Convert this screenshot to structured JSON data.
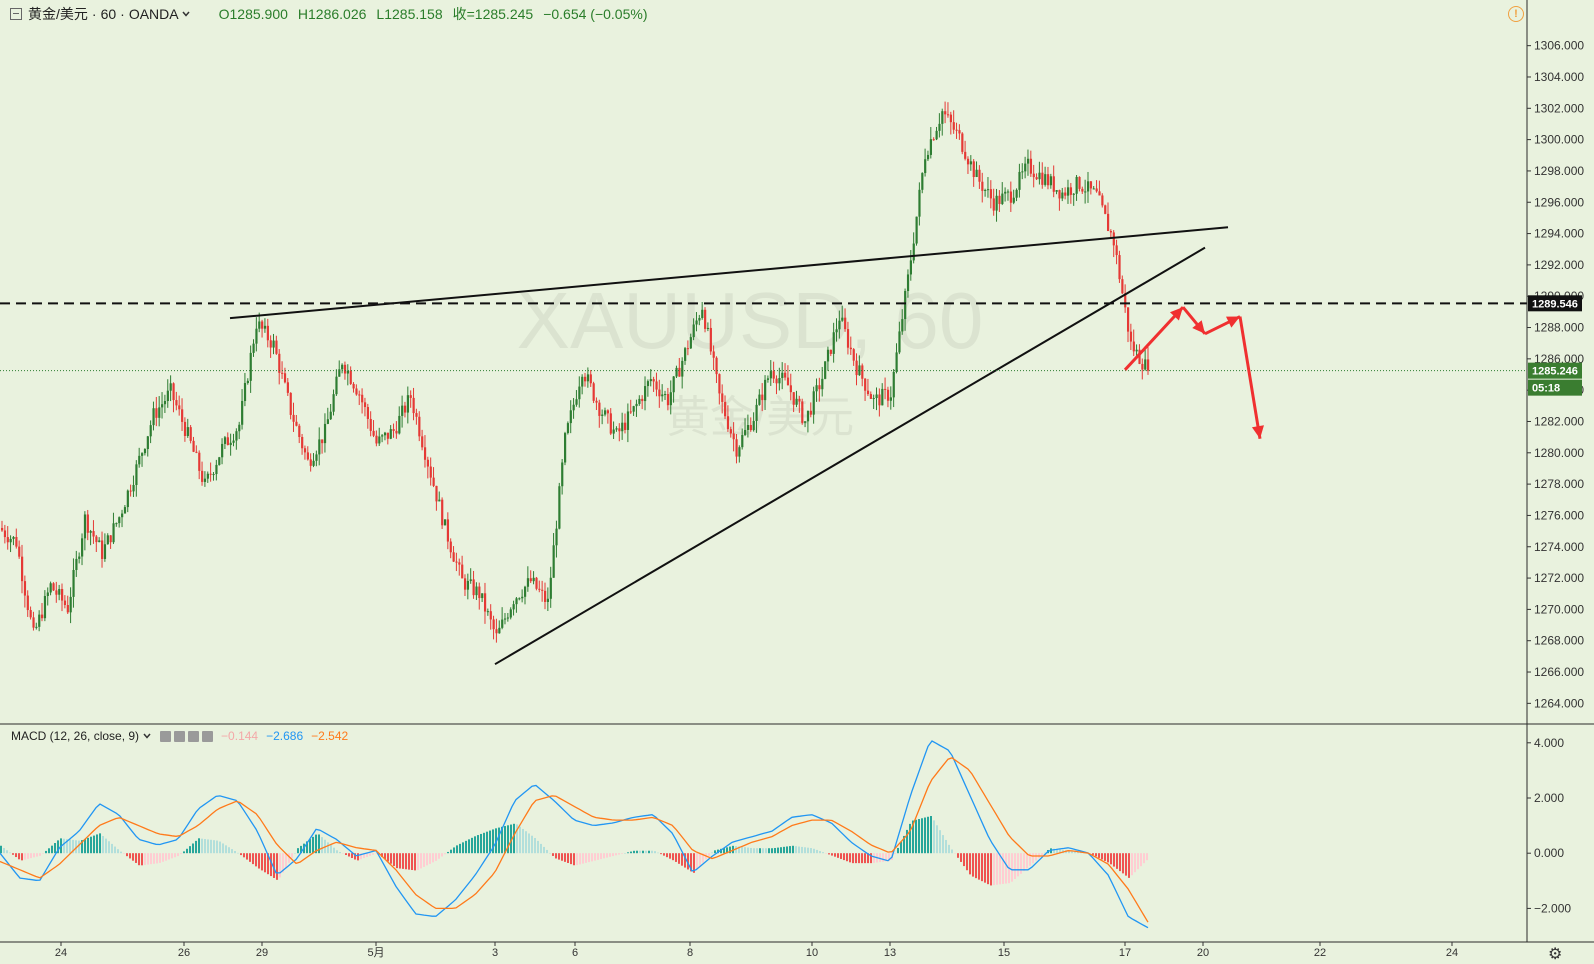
{
  "header": {
    "symbol": "黄金/美元",
    "interval": "60",
    "source": "OANDA",
    "open": "O1285.900",
    "high": "H1286.026",
    "low": "L1285.158",
    "close": "收=1285.245",
    "change": "−0.654 (−0.05%)",
    "dropdown_icon": "chevron-down-icon",
    "alert_icon": "alert-icon",
    "alert_glyph": "!"
  },
  "watermark": {
    "symbol": "XAUUSD, 60",
    "name": "黄金/美元"
  },
  "macd_header": {
    "label": "MACD (12, 26, close, 9)",
    "hist_value": "−0.144",
    "macd_value": "−2.686",
    "signal_value": "−2.542",
    "icons": [
      "eye-icon",
      "settings-icon",
      "lock-icon",
      "close-icon"
    ]
  },
  "colors": {
    "background": "#e9f2de",
    "up_candle": "#2e7d32",
    "down_candle": "#e53935",
    "trend_line": "#111111",
    "arrows": "#f03030",
    "price_label_bg": "#3a7d30",
    "level_label_bg": "#111111",
    "macd_line": "#2196f3",
    "signal_line": "#ff7a1a",
    "hist_pos_strong": "#26a69a",
    "hist_pos_weak": "#b2dfdb",
    "hist_neg_strong": "#ef5350",
    "hist_neg_weak": "#ffcdd2"
  },
  "price_axis": {
    "ticks": [
      "1306.000",
      "1304.000",
      "1302.000",
      "1300.000",
      "1298.000",
      "1296.000",
      "1294.000",
      "1292.000",
      "1290.000",
      "1288.000",
      "1286.000",
      "1284.000",
      "1282.000",
      "1280.000",
      "1278.000",
      "1276.000",
      "1274.000",
      "1272.000",
      "1270.000",
      "1268.000",
      "1266.000",
      "1264.000"
    ],
    "level_label": "1289.546",
    "current_label": "1285.246",
    "countdown_label": "05:18"
  },
  "macd_axis": {
    "ticks": [
      "4.000",
      "2.000",
      "0.000",
      "−2.000"
    ]
  },
  "time_axis": {
    "ticks": [
      "24",
      "26",
      "29",
      "5月",
      "3",
      "6",
      "8",
      "10",
      "13",
      "15",
      "17",
      "20",
      "22",
      "24"
    ]
  },
  "settings_icon": "gear-icon",
  "chart_data": {
    "type": "candlestick",
    "symbol": "XAUUSD",
    "interval": "60",
    "price_ylim": [
      1263,
      1307
    ],
    "current_price": 1285.246,
    "horizontal_level": 1289.546,
    "trend_lines": [
      {
        "from": [
          "26-28",
          1288.6
        ],
        "to": [
          "20",
          1294.4
        ]
      },
      {
        "from": [
          "3",
          1266.5
        ],
        "to": [
          "19-20",
          1293.1
        ]
      }
    ],
    "price_path": [
      1275.2,
      1274.3,
      1268.3,
      1271.5,
      1270.1,
      1275.8,
      1273.6,
      1275.9,
      1279.0,
      1282.4,
      1283.9,
      1281.1,
      1277.9,
      1280.3,
      1281.8,
      1288.3,
      1286.9,
      1282.7,
      1279.4,
      1281.3,
      1285.9,
      1283.8,
      1280.6,
      1281.4,
      1283.6,
      1279.4,
      1275.2,
      1271.8,
      1271.0,
      1268.2,
      1270.7,
      1271.8,
      1270.4,
      1280.8,
      1285.4,
      1282.9,
      1281.1,
      1282.7,
      1284.7,
      1283.4,
      1286.4,
      1289.4,
      1283.6,
      1280.3,
      1282.3,
      1285.3,
      1284.3,
      1282.0,
      1284.8,
      1288.7,
      1285.5,
      1283.3,
      1283.8,
      1291.1,
      1299.1,
      1301.8,
      1300.1,
      1297.6,
      1296.0,
      1296.5,
      1298.3,
      1297.5,
      1296.6,
      1297.2,
      1296.4,
      1293.5,
      1286.9,
      1285.3
    ],
    "projection_arrows": [
      {
        "from": [
          "17",
          1285.3
        ],
        "to": [
          "19",
          1289.3
        ]
      },
      {
        "from": [
          "19",
          1289.3
        ],
        "to": [
          "19-20",
          1287.6
        ]
      },
      {
        "from": [
          "19-20",
          1287.6
        ],
        "to": [
          "20-21",
          1288.7
        ]
      },
      {
        "from": [
          "20-21",
          1288.7
        ],
        "to": [
          "21",
          1280.9
        ]
      }
    ],
    "macd": {
      "params": "12, 26, close, 9",
      "ylim": [
        -3,
        4.5
      ],
      "macd": [
        0.0,
        -0.9,
        -1.0,
        0.2,
        0.8,
        1.8,
        1.4,
        0.5,
        0.3,
        0.5,
        1.6,
        2.1,
        1.9,
        0.8,
        -0.8,
        -0.2,
        0.9,
        0.5,
        -0.1,
        0.1,
        -1.2,
        -2.2,
        -2.3,
        -1.7,
        -0.8,
        0.3,
        1.9,
        2.5,
        1.9,
        1.2,
        1.0,
        1.1,
        1.3,
        1.4,
        0.7,
        -0.7,
        -0.1,
        0.4,
        0.6,
        0.8,
        1.3,
        1.4,
        1.1,
        0.4,
        -0.1,
        -0.3,
        2.1,
        4.1,
        3.7,
        2.1,
        0.5,
        -0.6,
        -0.6,
        0.1,
        0.2,
        0.0,
        -0.8,
        -2.3,
        -2.7
      ],
      "signal": [
        -0.3,
        -0.6,
        -0.9,
        -0.4,
        0.3,
        1.0,
        1.3,
        1.0,
        0.7,
        0.6,
        1.0,
        1.6,
        1.9,
        1.4,
        0.3,
        -0.4,
        0.1,
        0.4,
        0.2,
        0.1,
        -0.6,
        -1.5,
        -2.0,
        -2.0,
        -1.5,
        -0.7,
        0.7,
        1.9,
        2.1,
        1.7,
        1.3,
        1.2,
        1.2,
        1.3,
        1.0,
        0.1,
        -0.2,
        0.1,
        0.4,
        0.6,
        1.0,
        1.2,
        1.2,
        0.8,
        0.3,
        0.0,
        0.8,
        2.6,
        3.5,
        3.0,
        1.8,
        0.6,
        -0.1,
        -0.1,
        0.1,
        0.0,
        -0.4,
        -1.3,
        -2.5
      ]
    }
  }
}
